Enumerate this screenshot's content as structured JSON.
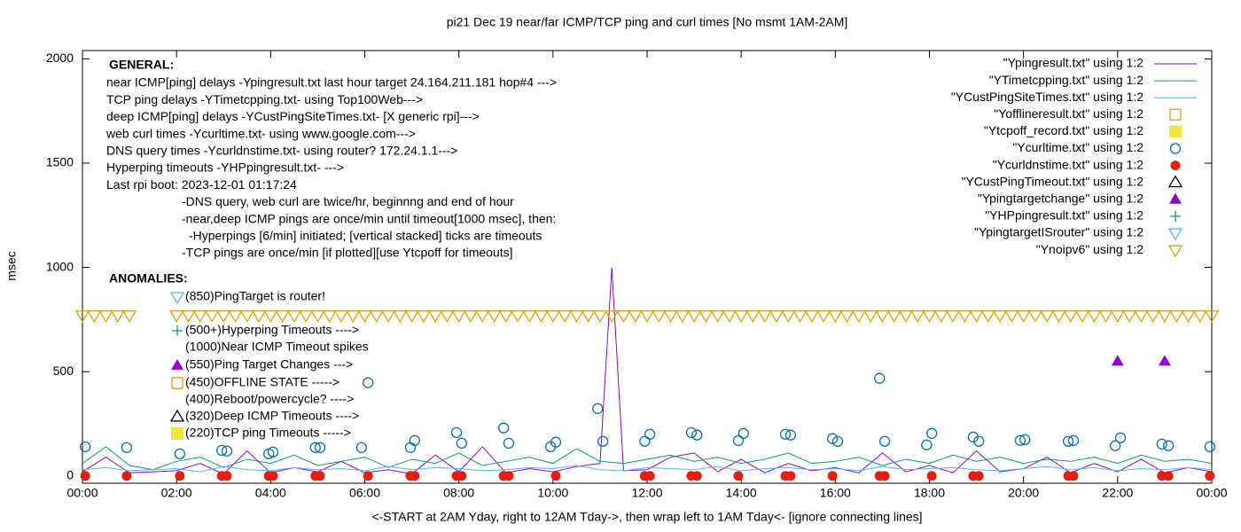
{
  "chart_data": {
    "type": "line",
    "title": "pi21 Dec 19  near/far ICMP/TCP ping and curl times [No msmt 1AM-2AM]",
    "xlabel": "<-START at 2AM Yday, right to 12AM Tday->, then wrap left to 1AM Tday<- [ignore connecting lines]",
    "ylabel": "msec",
    "xlim": [
      0,
      24
    ],
    "xticks": [
      {
        "value": 0,
        "label": "00:00"
      },
      {
        "value": 2,
        "label": "02:00"
      },
      {
        "value": 4,
        "label": "04:00"
      },
      {
        "value": 6,
        "label": "06:00"
      },
      {
        "value": 8,
        "label": "08:00"
      },
      {
        "value": 10,
        "label": "10:00"
      },
      {
        "value": 12,
        "label": "12:00"
      },
      {
        "value": 14,
        "label": "14:00"
      },
      {
        "value": 16,
        "label": "16:00"
      },
      {
        "value": 18,
        "label": "18:00"
      },
      {
        "value": 20,
        "label": "20:00"
      },
      {
        "value": 22,
        "label": "22:00"
      },
      {
        "value": 24,
        "label": "00:00"
      }
    ],
    "ylim": [
      -35,
      2040
    ],
    "yticks": [
      0,
      500,
      1000,
      1500,
      2000
    ],
    "grid": false,
    "legend": "top-right",
    "general_heading": "GENERAL:",
    "general_notes": [
      "near ICMP[ping] delays -Ypingresult.txt last hour target 24.164.211.181 hop#4 --->",
      "TCP ping delays -YTimetcpping.txt- using Top100Web--->",
      "deep ICMP[ping] delays -YCustPingSiteTimes.txt- [X generic rpi]--->",
      "web curl times -Ycurltime.txt- using www.google.com--->",
      "DNS query times -Ycurldnstime.txt- using router? 172.24.1.1--->",
      "Hyperping timeouts -YHPpingresult.txt- --->",
      "Last rpi boot: 2023-12-01 01:17:24",
      "-DNS query, web curl are twice/hr, beginnng and end of hour",
      "-near,deep ICMP pings are once/min until timeout[1000 msec], then:",
      "-Hyperpings [6/min] initiated; [vertical stacked] ticks are timeouts",
      "-TCP pings are once/min [if plotted][use Ytcpoff for timeouts]"
    ],
    "anomaly_heading": "ANOMALIES:",
    "anomaly_notes": [
      "(850)PingTarget is router!",
      "(500+)Hyperping Timeouts ---->",
      "(1000)Near ICMP Timeout spikes",
      "(550)Ping Target Changes --->",
      "(450)OFFLINE STATE ----->",
      "(400)Reboot/powercycle? ---->",
      "(320)Deep ICMP Timeouts ---->",
      "(220)TCP ping Timeouts ----->"
    ],
    "series": [
      {
        "name": "\"Ypingresult.txt\" using 1:2",
        "color": "#9400d3",
        "marker": "line",
        "x": [
          0,
          0.5,
          1,
          2,
          2.5,
          3,
          3.5,
          4,
          4.5,
          5,
          5.5,
          6,
          6.5,
          7,
          7.5,
          8,
          8.5,
          9,
          9.5,
          10,
          10.5,
          11,
          11.25,
          11.5,
          12,
          12.5,
          13,
          13.5,
          14,
          14.5,
          15,
          15.5,
          16,
          16.5,
          17,
          17.5,
          18,
          18.5,
          19,
          19.5,
          20,
          20.5,
          21,
          21.5,
          22,
          22.5,
          23,
          23.5,
          24
        ],
        "values": [
          20,
          90,
          15,
          25,
          60,
          10,
          120,
          15,
          40,
          20,
          70,
          15,
          30,
          10,
          100,
          20,
          140,
          15,
          35,
          20,
          45,
          60,
          1000,
          25,
          30,
          90,
          110,
          20,
          80,
          15,
          60,
          25,
          40,
          15,
          110,
          20,
          50,
          15,
          120,
          20,
          35,
          90,
          15,
          60,
          20,
          80,
          15,
          40,
          20
        ]
      },
      {
        "name": "\"YTimetcpping.txt\" using 1:2",
        "color": "#009e73",
        "marker": "line",
        "x": [
          0,
          0.5,
          1,
          1.5,
          2,
          2.5,
          3,
          3.5,
          4,
          4.5,
          5,
          5.5,
          6,
          6.5,
          7,
          7.5,
          8,
          8.5,
          9,
          9.5,
          10,
          10.5,
          11,
          11.5,
          12,
          12.5,
          13,
          13.5,
          14,
          14.5,
          15,
          15.5,
          16,
          16.5,
          17,
          17.5,
          18,
          18.5,
          19,
          19.5,
          20,
          20.5,
          21,
          21.5,
          22,
          22.5,
          23,
          23.5,
          24
        ],
        "values": [
          60,
          140,
          50,
          30,
          70,
          90,
          40,
          80,
          60,
          100,
          50,
          70,
          90,
          40,
          80,
          60,
          110,
          50,
          70,
          90,
          60,
          130,
          70,
          60,
          80,
          100,
          70,
          90,
          60,
          80,
          110,
          60,
          70,
          90,
          50,
          80,
          60,
          100,
          70,
          90,
          60,
          80,
          70,
          90,
          60,
          100,
          70,
          80,
          60
        ]
      },
      {
        "name": "\"YCustPingSiteTimes.txt\" using 1:2",
        "color": "#56b4e9",
        "marker": "line",
        "x": [
          0,
          0.5,
          1,
          1.5,
          2,
          2.5,
          3,
          3.5,
          4,
          4.5,
          5,
          5.5,
          6,
          6.5,
          7,
          7.5,
          8,
          8.5,
          9,
          9.5,
          10,
          10.5,
          11,
          11.5,
          12,
          12.5,
          13,
          13.5,
          14,
          14.5,
          15,
          15.5,
          16,
          16.5,
          17,
          17.5,
          18,
          18.5,
          19,
          19.5,
          20,
          20.5,
          21,
          21.5,
          22,
          22.5,
          23,
          23.5,
          24
        ],
        "values": [
          30,
          40,
          25,
          30,
          35,
          20,
          45,
          30,
          25,
          40,
          30,
          35,
          25,
          45,
          30,
          40,
          35,
          25,
          30,
          40,
          35,
          50,
          30,
          25,
          40,
          35,
          30,
          45,
          25,
          35,
          40,
          30,
          35,
          25,
          45,
          30,
          35,
          40,
          30,
          25,
          35,
          45,
          30,
          40,
          25,
          35,
          30,
          40,
          30
        ]
      },
      {
        "name": "\"Yofflineresult.txt\" using 1:2",
        "color": "#e69f00",
        "marker": "square-open",
        "x": [],
        "values": []
      },
      {
        "name": "\"Ytcpoff_record.txt\" using 1:2",
        "color": "#f0e442",
        "marker": "square",
        "x": [],
        "values": []
      },
      {
        "name": "\"Ycurltime.txt\" using 1:2",
        "color": "#0072b2",
        "marker": "circle-open",
        "x": [
          0.06,
          0.94,
          2.07,
          2.96,
          3.07,
          3.96,
          4.05,
          4.95,
          5.05,
          5.93,
          6.07,
          6.97,
          7.06,
          7.95,
          8.06,
          8.95,
          9.06,
          9.95,
          10.06,
          10.95,
          11.06,
          11.95,
          12.06,
          12.94,
          13.06,
          13.94,
          14.05,
          14.94,
          15.05,
          15.94,
          16.05,
          16.94,
          17.05,
          17.94,
          18.05,
          18.93,
          19.05,
          19.93,
          20.03,
          20.95,
          21.06,
          21.95,
          22.06,
          22.94,
          23.08,
          23.96
        ],
        "values": [
          140,
          136,
          106,
          123,
          119,
          106,
          115,
          136,
          136,
          136,
          447,
          136,
          170,
          208,
          157,
          230,
          157,
          140,
          162,
          323,
          166,
          166,
          200,
          208,
          196,
          170,
          204,
          200,
          196,
          179,
          166,
          468,
          166,
          149,
          204,
          187,
          166,
          170,
          174,
          166,
          170,
          145,
          183,
          153,
          145,
          140
        ]
      },
      {
        "name": "\"Ycurldnstime.txt\" using 1:2",
        "color": "#e51e10",
        "marker": "circle",
        "x": [
          0.06,
          0.94,
          2.07,
          2.96,
          3.07,
          3.96,
          4.05,
          4.95,
          5.05,
          6.07,
          6.97,
          7.06,
          7.95,
          8.06,
          8.95,
          9.06,
          10.06,
          11.95,
          12.06,
          12.94,
          13.06,
          13.94,
          14.94,
          15.05,
          15.94,
          16.94,
          17.05,
          18.05,
          18.93,
          19.05,
          20.95,
          21.06,
          22.94,
          23.08,
          23.96
        ],
        "values": [
          0,
          0,
          0,
          0,
          0,
          0,
          0,
          0,
          0,
          0,
          0,
          0,
          0,
          0,
          0,
          0,
          0,
          0,
          0,
          0,
          0,
          0,
          0,
          0,
          0,
          0,
          0,
          0,
          0,
          0,
          0,
          0,
          0,
          0,
          0
        ]
      },
      {
        "name": "\"YCustPingTimeout.txt\" using 1:2",
        "color": "#000000",
        "marker": "triangle-open",
        "x": [],
        "values": []
      },
      {
        "name": "\"Ypingtargetchange\" using 1:2",
        "color": "#9400d3",
        "marker": "triangle",
        "x": [
          22,
          23
        ],
        "values": [
          550,
          550
        ]
      },
      {
        "name": "\"YHPpingresult.txt\" using 1:2",
        "color": "#009e73",
        "marker": "plus",
        "x": [],
        "values": []
      },
      {
        "name": "\"YpingtargetISrouter\" using 1:2",
        "color": "#56b4e9",
        "marker": "triangle-down-open",
        "x": [],
        "values": []
      },
      {
        "name": "\"Ynoipv6\" using 1:2",
        "color": "#e69f00",
        "marker": "triangle-down-open",
        "x": [
          0,
          0.25,
          0.5,
          0.75,
          1,
          2,
          2.25,
          2.5,
          2.75,
          3,
          3.25,
          3.5,
          3.75,
          4,
          4.25,
          4.5,
          4.75,
          5,
          5.25,
          5.5,
          5.75,
          6,
          6.25,
          6.5,
          6.75,
          7,
          7.25,
          7.5,
          7.75,
          8,
          8.25,
          8.5,
          8.75,
          9,
          9.25,
          9.5,
          9.75,
          10,
          10.25,
          10.5,
          10.75,
          11,
          11.25,
          11.5,
          11.75,
          12,
          12.25,
          12.5,
          12.75,
          13,
          13.25,
          13.5,
          13.75,
          14,
          14.25,
          14.5,
          14.75,
          15,
          15.25,
          15.5,
          15.75,
          16,
          16.25,
          16.5,
          16.75,
          17,
          17.25,
          17.5,
          17.75,
          18,
          18.25,
          18.5,
          18.75,
          19,
          19.25,
          19.5,
          19.75,
          20,
          20.25,
          20.5,
          20.75,
          21,
          21.25,
          21.5,
          21.75,
          22,
          22.25,
          22.5,
          22.75,
          23,
          23.25,
          23.5,
          23.75,
          24
        ],
        "values": [
          770,
          770,
          770,
          770,
          770,
          770,
          770,
          770,
          770,
          770,
          770,
          770,
          770,
          770,
          770,
          770,
          770,
          770,
          770,
          770,
          770,
          770,
          770,
          770,
          770,
          770,
          770,
          770,
          770,
          770,
          770,
          770,
          770,
          770,
          770,
          770,
          770,
          770,
          770,
          770,
          770,
          770,
          770,
          770,
          770,
          770,
          770,
          770,
          770,
          770,
          770,
          770,
          770,
          770,
          770,
          770,
          770,
          770,
          770,
          770,
          770,
          770,
          770,
          770,
          770,
          770,
          770,
          770,
          770,
          770,
          770,
          770,
          770,
          770,
          770,
          770,
          770,
          770,
          770,
          770,
          770,
          770,
          770,
          770,
          770,
          770,
          770,
          770,
          770,
          770,
          770,
          770,
          770,
          770
        ]
      }
    ]
  }
}
